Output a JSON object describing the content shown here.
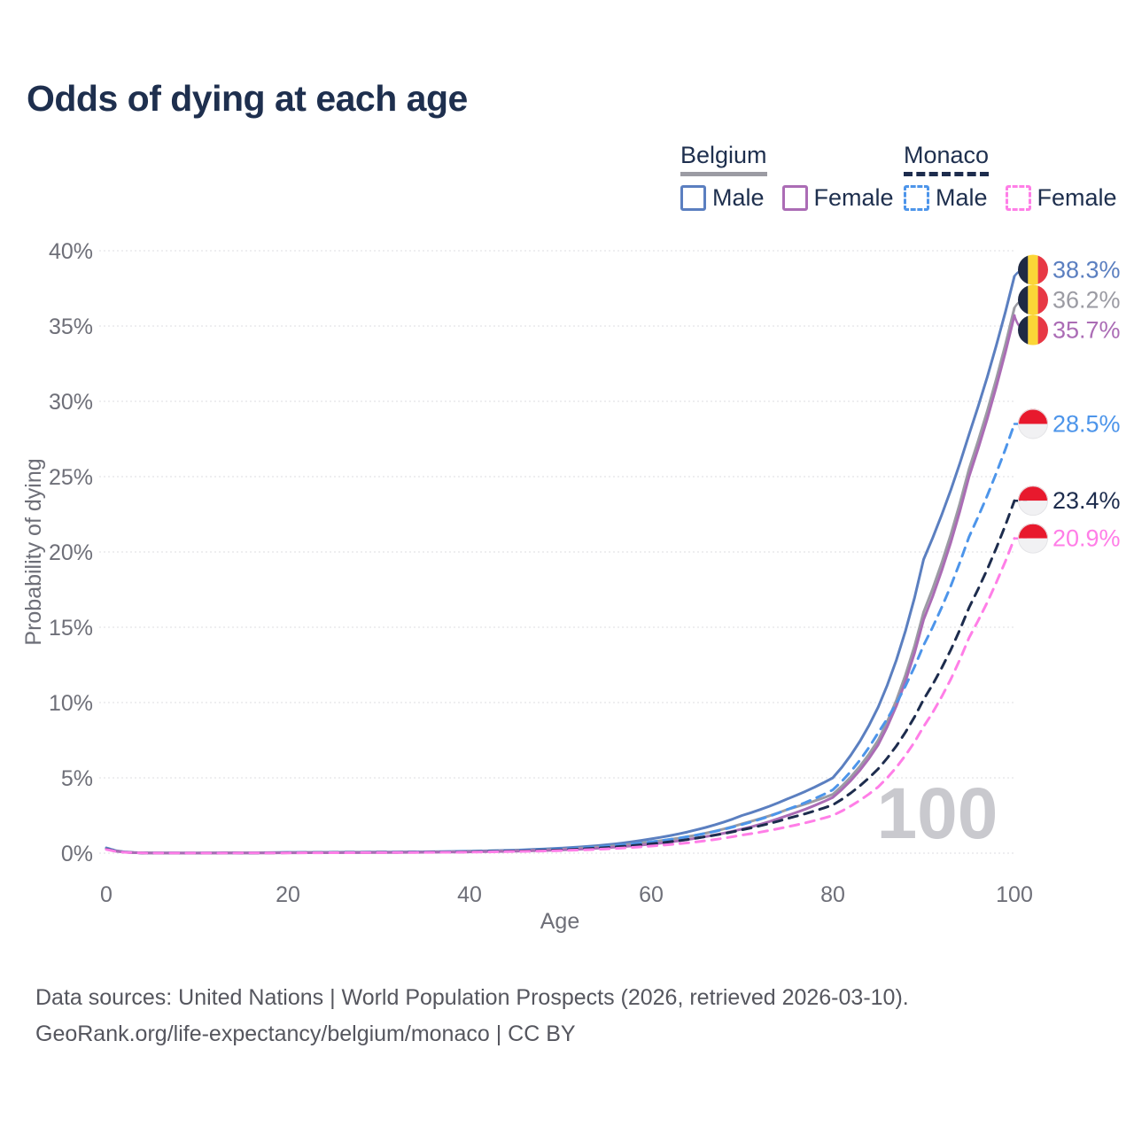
{
  "title": "Odds of dying at each age",
  "legend": {
    "groups": [
      {
        "country": "Belgium",
        "line_style": "solid",
        "country_line_color": "#9b9ba3",
        "items": [
          {
            "label": "Male",
            "color": "#5b7fc0"
          },
          {
            "label": "Female",
            "color": "#ab6cb5"
          }
        ]
      },
      {
        "country": "Monaco",
        "line_style": "dashed",
        "country_line_color": "#1d2c4d",
        "items": [
          {
            "label": "Male",
            "color": "#4d95ea"
          },
          {
            "label": "Female",
            "color": "#ff7ee7"
          }
        ]
      }
    ]
  },
  "watermark": "100",
  "footer": {
    "line1": "Data sources: United Nations | World Population Prospects (2026, retrieved 2026-03-10).",
    "line2": "GeoRank.org/life-expectancy/belgium/monaco | CC BY"
  },
  "colors": {
    "background": "#ffffff",
    "title_text": "#1e2f4e",
    "axis_text": "#6e6f78",
    "gridline": "#e4e4e8",
    "watermark": "#c9c9ce",
    "footer_text": "#55565e"
  },
  "flags": {
    "belgium": {
      "black": "#1f2a44",
      "yellow": "#fbd637",
      "red": "#e73845"
    },
    "monaco": {
      "red": "#e8192d",
      "white": "#f1f1f3"
    }
  },
  "chart_data": {
    "type": "line",
    "title": "Odds of dying at each age",
    "xlabel": "Age",
    "ylabel": "Probability of dying",
    "xlim": [
      0,
      100
    ],
    "ylim": [
      0,
      40
    ],
    "x_ticks": [
      0,
      20,
      40,
      60,
      80,
      100
    ],
    "y_ticks": [
      0,
      5,
      10,
      15,
      20,
      25,
      30,
      35,
      40
    ],
    "y_tick_suffix": "%",
    "grid": true,
    "legend_position": "top-right",
    "ages": [
      0,
      5,
      10,
      15,
      20,
      25,
      30,
      35,
      40,
      45,
      50,
      55,
      60,
      65,
      70,
      75,
      80,
      85,
      90,
      95,
      100
    ],
    "series": [
      {
        "id": "belgium-male",
        "name": "Belgium Male",
        "country": "Belgium",
        "sex": "Male",
        "color": "#5b7fc0",
        "dash": "solid",
        "flag": "belgium",
        "end_label": "38.3%",
        "end_value": 38.3,
        "values": [
          0.35,
          0.01,
          0.008,
          0.02,
          0.05,
          0.06,
          0.07,
          0.09,
          0.13,
          0.2,
          0.33,
          0.55,
          0.95,
          1.55,
          2.5,
          3.6,
          5.0,
          9.7,
          19.5,
          27.8,
          38.3
        ]
      },
      {
        "id": "belgium-total",
        "name": "Belgium",
        "country": "Belgium",
        "sex": "Both",
        "color": "#9b9ba3",
        "dash": "solid",
        "flag": "belgium",
        "end_label": "36.2%",
        "end_value": 36.2,
        "values": [
          0.3,
          0.009,
          0.007,
          0.015,
          0.035,
          0.045,
          0.055,
          0.07,
          0.1,
          0.16,
          0.26,
          0.44,
          0.75,
          1.2,
          1.95,
          2.9,
          3.9,
          7.5,
          16.0,
          25.5,
          36.2
        ]
      },
      {
        "id": "belgium-female",
        "name": "Belgium Female",
        "country": "Belgium",
        "sex": "Female",
        "color": "#ab6cb5",
        "dash": "solid",
        "flag": "belgium",
        "end_label": "35.7%",
        "end_value": 35.7,
        "values": [
          0.28,
          0.008,
          0.006,
          0.012,
          0.025,
          0.032,
          0.042,
          0.058,
          0.085,
          0.13,
          0.21,
          0.36,
          0.6,
          1.0,
          1.6,
          2.5,
          3.7,
          7.2,
          15.5,
          25.0,
          35.7
        ]
      },
      {
        "id": "monaco-male",
        "name": "Monaco Male",
        "country": "Monaco",
        "sex": "Male",
        "color": "#4d95ea",
        "dash": "dashed",
        "flag": "monaco",
        "end_label": "28.5%",
        "end_value": 28.5,
        "values": [
          0.3,
          0.009,
          0.007,
          0.015,
          0.04,
          0.05,
          0.06,
          0.08,
          0.11,
          0.17,
          0.27,
          0.45,
          0.75,
          1.2,
          1.9,
          2.9,
          4.2,
          8.0,
          13.8,
          21.0,
          28.5
        ]
      },
      {
        "id": "monaco-total",
        "name": "Monaco",
        "country": "Monaco",
        "sex": "Both",
        "color": "#1d2c4d",
        "dash": "dashed",
        "flag": "monaco",
        "end_label": "23.4%",
        "end_value": 23.4,
        "values": [
          0.27,
          0.008,
          0.006,
          0.012,
          0.03,
          0.04,
          0.05,
          0.065,
          0.09,
          0.14,
          0.22,
          0.37,
          0.62,
          1.0,
          1.55,
          2.3,
          3.2,
          5.6,
          10.2,
          16.3,
          23.4
        ]
      },
      {
        "id": "monaco-female",
        "name": "Monaco Female",
        "country": "Monaco",
        "sex": "Female",
        "color": "#ff7ee7",
        "dash": "dashed",
        "flag": "monaco",
        "end_label": "20.9%",
        "end_value": 20.9,
        "values": [
          0.25,
          0.007,
          0.005,
          0.01,
          0.02,
          0.028,
          0.038,
          0.05,
          0.07,
          0.11,
          0.17,
          0.28,
          0.47,
          0.75,
          1.2,
          1.75,
          2.5,
          4.4,
          8.4,
          14.3,
          20.9
        ]
      }
    ]
  }
}
